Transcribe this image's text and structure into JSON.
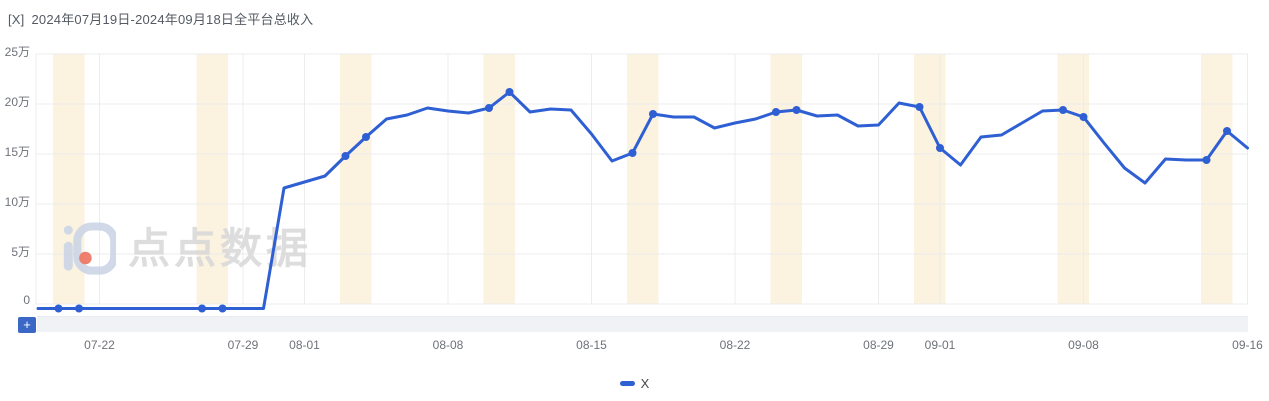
{
  "header": {
    "app_tag": "[X]",
    "title": "2024年07月19日-2024年09月18日全平台总收入"
  },
  "watermark": {
    "text": "点点数据"
  },
  "toolbar": {
    "add_button_label": "+"
  },
  "legend": {
    "items": [
      {
        "label": "X",
        "color": "#2e5fd3"
      }
    ]
  },
  "colors": {
    "line": "#2e5fd3",
    "weekend_band": "#fbf2e0",
    "gridline": "#ececec",
    "axis_label": "#6e7279",
    "title_text": "#545a63",
    "zoom_strip": "#f0f2f6",
    "plus_button": "#3b67c6",
    "watermark_gray": "#d8d8d8",
    "watermark_logo_blue": "#c9d3e6",
    "watermark_logo_red": "#ec6a58"
  },
  "chart_data": {
    "type": "line",
    "title": "[X] 2024年07月19日-2024年09月18日全平台总收入",
    "unit": "万",
    "legend_position": "bottom",
    "grid": true,
    "weekend_bands_highlighted": true,
    "weekend_points_marked": true,
    "y_axis": {
      "tick_values_wan": [
        0,
        5,
        10,
        15,
        20,
        25
      ],
      "tick_labels": [
        "0",
        "5万",
        "10万",
        "15万",
        "20万",
        "25万"
      ],
      "max_wan": 25
    },
    "x_axis": {
      "tick_labels": [
        "07-22",
        "07-29",
        "08-01",
        "08-08",
        "08-15",
        "08-22",
        "08-29",
        "09-01",
        "09-08",
        "09-16"
      ]
    },
    "series": [
      {
        "name": "X",
        "color": "#2e5fd3",
        "dates": [
          "2024-07-19",
          "2024-07-20",
          "2024-07-21",
          "2024-07-22",
          "2024-07-23",
          "2024-07-24",
          "2024-07-25",
          "2024-07-26",
          "2024-07-27",
          "2024-07-28",
          "2024-07-29",
          "2024-07-30",
          "2024-07-31",
          "2024-08-01",
          "2024-08-02",
          "2024-08-03",
          "2024-08-04",
          "2024-08-05",
          "2024-08-06",
          "2024-08-07",
          "2024-08-08",
          "2024-08-09",
          "2024-08-10",
          "2024-08-11",
          "2024-08-12",
          "2024-08-13",
          "2024-08-14",
          "2024-08-15",
          "2024-08-16",
          "2024-08-17",
          "2024-08-18",
          "2024-08-19",
          "2024-08-20",
          "2024-08-21",
          "2024-08-22",
          "2024-08-23",
          "2024-08-24",
          "2024-08-25",
          "2024-08-26",
          "2024-08-27",
          "2024-08-28",
          "2024-08-29",
          "2024-08-30",
          "2024-08-31",
          "2024-09-01",
          "2024-09-02",
          "2024-09-03",
          "2024-09-04",
          "2024-09-05",
          "2024-09-06",
          "2024-09-07",
          "2024-09-08",
          "2024-09-09",
          "2024-09-10",
          "2024-09-11",
          "2024-09-12",
          "2024-09-13",
          "2024-09-14",
          "2024-09-15",
          "2024-09-16"
        ],
        "values_wan": [
          0,
          0,
          0,
          0,
          0,
          0,
          0,
          0,
          0,
          0,
          0,
          0,
          11.6,
          12.2,
          12.8,
          14.8,
          16.7,
          18.5,
          18.9,
          19.6,
          19.3,
          19.1,
          19.6,
          21.2,
          19.2,
          19.5,
          19.4,
          17.0,
          14.3,
          15.1,
          19.0,
          18.7,
          18.7,
          17.6,
          18.1,
          18.5,
          19.2,
          19.4,
          18.8,
          18.9,
          17.8,
          17.9,
          20.1,
          19.7,
          15.6,
          13.9,
          16.7,
          16.9,
          18.1,
          19.3,
          19.4,
          18.7,
          16.1,
          13.6,
          12.1,
          14.5,
          14.4,
          14.4,
          17.3,
          15.6
        ]
      }
    ]
  }
}
